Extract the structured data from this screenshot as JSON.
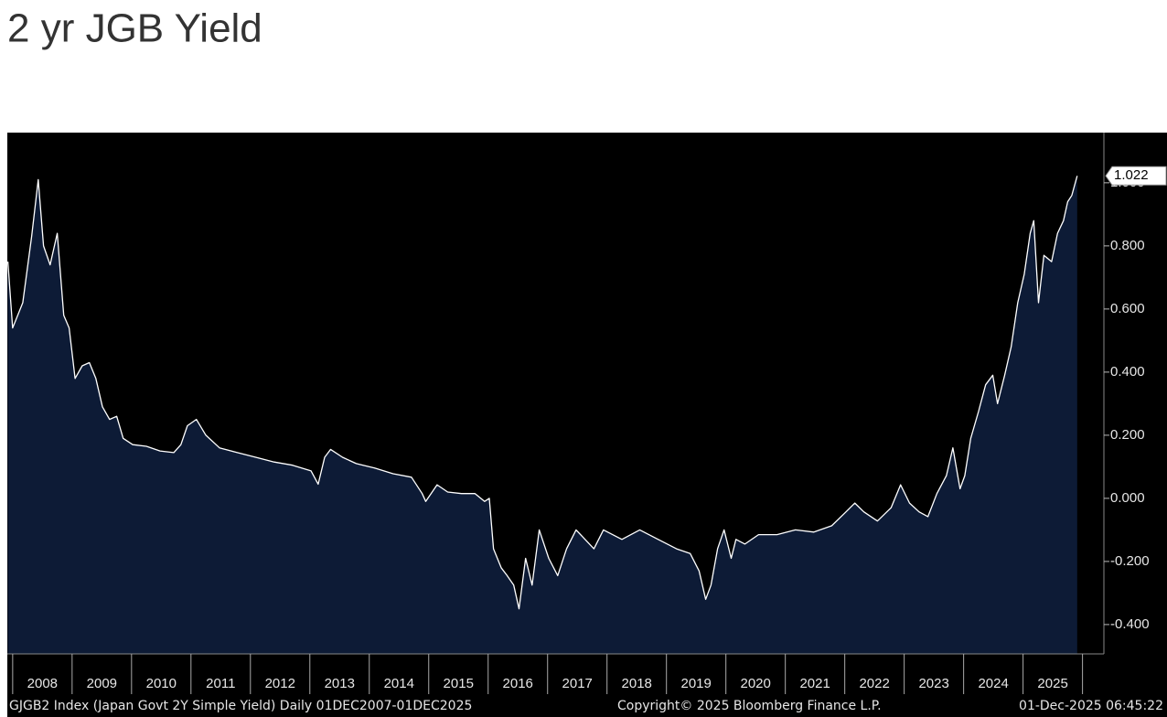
{
  "chart_data": {
    "type": "area",
    "title": "2 yr JGB Yield",
    "x": [
      2007.92,
      2008.0,
      2008.17,
      2008.32,
      2008.43,
      2008.52,
      2008.63,
      2008.75,
      2008.86,
      2008.95,
      2009.05,
      2009.17,
      2009.29,
      2009.4,
      2009.51,
      2009.63,
      2009.75,
      2009.86,
      2010.02,
      2010.25,
      2010.48,
      2010.71,
      2010.83,
      2010.94,
      2011.09,
      2011.25,
      2011.48,
      2011.78,
      2012.09,
      2012.4,
      2012.71,
      2013.02,
      2013.14,
      2013.25,
      2013.35,
      2013.55,
      2013.78,
      2014.09,
      2014.4,
      2014.71,
      2014.89,
      2014.95,
      2015.14,
      2015.32,
      2015.55,
      2015.78,
      2015.94,
      2016.02,
      2016.09,
      2016.22,
      2016.32,
      2016.43,
      2016.52,
      2016.63,
      2016.74,
      2016.86,
      2017.02,
      2017.17,
      2017.32,
      2017.48,
      2017.63,
      2017.78,
      2017.94,
      2018.25,
      2018.55,
      2018.86,
      2019.17,
      2019.4,
      2019.55,
      2019.66,
      2019.75,
      2019.86,
      2019.97,
      2020.09,
      2020.17,
      2020.32,
      2020.55,
      2020.86,
      2021.17,
      2021.48,
      2021.78,
      2022.02,
      2022.17,
      2022.32,
      2022.55,
      2022.78,
      2022.94,
      2023.09,
      2023.25,
      2023.4,
      2023.55,
      2023.71,
      2023.82,
      2023.94,
      2024.02,
      2024.12,
      2024.25,
      2024.37,
      2024.49,
      2024.57,
      2024.69,
      2024.8,
      2024.91,
      2025.02,
      2025.12,
      2025.18,
      2025.26,
      2025.35,
      2025.48,
      2025.58,
      2025.68,
      2025.75,
      2025.82,
      2025.91
    ],
    "values": [
      0.75,
      0.54,
      0.62,
      0.83,
      1.01,
      0.8,
      0.74,
      0.84,
      0.58,
      0.54,
      0.38,
      0.42,
      0.43,
      0.38,
      0.29,
      0.25,
      0.26,
      0.19,
      0.17,
      0.165,
      0.15,
      0.145,
      0.17,
      0.23,
      0.25,
      0.2,
      0.16,
      0.145,
      0.13,
      0.115,
      0.105,
      0.087,
      0.045,
      0.13,
      0.155,
      0.13,
      0.11,
      0.096,
      0.078,
      0.067,
      0.015,
      -0.01,
      0.043,
      0.02,
      0.015,
      0.015,
      -0.01,
      0.0,
      -0.16,
      -0.22,
      -0.245,
      -0.275,
      -0.35,
      -0.19,
      -0.275,
      -0.1,
      -0.19,
      -0.245,
      -0.16,
      -0.1,
      -0.13,
      -0.16,
      -0.1,
      -0.13,
      -0.1,
      -0.13,
      -0.16,
      -0.175,
      -0.23,
      -0.32,
      -0.275,
      -0.16,
      -0.1,
      -0.19,
      -0.13,
      -0.145,
      -0.115,
      -0.115,
      -0.1,
      -0.107,
      -0.087,
      -0.043,
      -0.015,
      -0.043,
      -0.072,
      -0.03,
      0.043,
      -0.015,
      -0.043,
      -0.058,
      0.015,
      0.072,
      0.16,
      0.03,
      0.072,
      0.19,
      0.275,
      0.36,
      0.39,
      0.3,
      0.39,
      0.48,
      0.62,
      0.71,
      0.84,
      0.88,
      0.62,
      0.77,
      0.75,
      0.84,
      0.88,
      0.94,
      0.96,
      1.022
    ],
    "line_color": "#ffffff",
    "fill_color": "#0d1b36",
    "background": "#000000",
    "xlim": [
      2007.91,
      2026.36
    ],
    "xticks": [
      2008,
      2009,
      2010,
      2011,
      2012,
      2013,
      2014,
      2015,
      2016,
      2017,
      2018,
      2019,
      2020,
      2021,
      2022,
      2023,
      2024,
      2025,
      2026
    ],
    "xtick_labels": [
      {
        "value": 2008.5,
        "label": "2008"
      },
      {
        "value": 2009.5,
        "label": "2009"
      },
      {
        "value": 2010.5,
        "label": "2010"
      },
      {
        "value": 2011.5,
        "label": "2011"
      },
      {
        "value": 2012.5,
        "label": "2012"
      },
      {
        "value": 2013.5,
        "label": "2013"
      },
      {
        "value": 2014.5,
        "label": "2014"
      },
      {
        "value": 2015.5,
        "label": "2015"
      },
      {
        "value": 2016.5,
        "label": "2016"
      },
      {
        "value": 2017.5,
        "label": "2017"
      },
      {
        "value": 2018.5,
        "label": "2018"
      },
      {
        "value": 2019.5,
        "label": "2019"
      },
      {
        "value": 2020.5,
        "label": "2020"
      },
      {
        "value": 2021.5,
        "label": "2021"
      },
      {
        "value": 2022.5,
        "label": "2022"
      },
      {
        "value": 2023.5,
        "label": "2023"
      },
      {
        "value": 2024.5,
        "label": "2024"
      },
      {
        "value": 2025.5,
        "label": "2025"
      }
    ],
    "ylim": [
      -0.493,
      1.159
    ],
    "yticks": [
      {
        "value": -0.4,
        "label": "-0.400"
      },
      {
        "value": -0.2,
        "label": "-0.200"
      },
      {
        "value": 0,
        "label": "0.000"
      },
      {
        "value": 0.2,
        "label": "0.200"
      },
      {
        "value": 0.4,
        "label": "0.400"
      },
      {
        "value": 0.6,
        "label": "0.600"
      },
      {
        "value": 0.8,
        "label": "0.800"
      },
      {
        "value": 1.0,
        "label": "1.000"
      }
    ],
    "current_value": {
      "value": 1.022,
      "label": "1.022"
    },
    "footer": {
      "left": "GJGB2 Index (Japan Govt 2Y Simple Yield) Daily 01DEC2007-01DEC2025",
      "center": "Copyright© 2025 Bloomberg Finance L.P.",
      "right": "01-Dec-2025 06:45:22"
    }
  }
}
